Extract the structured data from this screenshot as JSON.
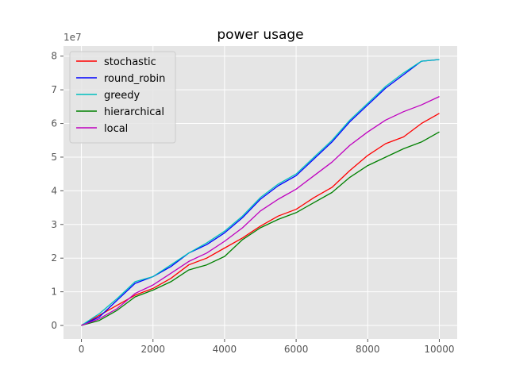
{
  "chart_data": {
    "type": "line",
    "title": "power usage",
    "xlabel": "",
    "ylabel": "",
    "y_offset_label": "1e7",
    "xlim": [
      -500,
      10500
    ],
    "ylim": [
      -0.4,
      8.3
    ],
    "xticks": [
      0,
      2000,
      4000,
      6000,
      8000,
      10000
    ],
    "xtick_labels": [
      "0",
      "2000",
      "4000",
      "6000",
      "8000",
      "10000"
    ],
    "yticks": [
      0,
      1,
      2,
      3,
      4,
      5,
      6,
      7,
      8
    ],
    "ytick_labels": [
      "0",
      "1",
      "2",
      "3",
      "4",
      "5",
      "6",
      "7",
      "8"
    ],
    "grid": true,
    "legend_position": "top-left",
    "x": [
      0,
      500,
      1000,
      1500,
      2000,
      2500,
      3000,
      3500,
      4000,
      4500,
      5000,
      5500,
      6000,
      6500,
      7000,
      7500,
      8000,
      8500,
      9000,
      9500,
      10000
    ],
    "series": [
      {
        "name": "stochastic",
        "color": "#ff0000",
        "values": [
          0,
          0.3,
          0.6,
          0.9,
          1.1,
          1.4,
          1.8,
          2.0,
          2.3,
          2.6,
          2.95,
          3.25,
          3.45,
          3.8,
          4.1,
          4.6,
          5.05,
          5.4,
          5.6,
          6.0,
          6.3
        ]
      },
      {
        "name": "round_robin",
        "color": "#0000ff",
        "values": [
          0,
          0.25,
          0.75,
          1.25,
          1.45,
          1.75,
          2.15,
          2.4,
          2.75,
          3.2,
          3.75,
          4.15,
          4.45,
          4.95,
          5.45,
          6.05,
          6.55,
          7.05,
          7.45,
          7.85,
          7.9
        ]
      },
      {
        "name": "greedy",
        "color": "#00bfbf",
        "values": [
          0,
          0.35,
          0.8,
          1.3,
          1.45,
          1.8,
          2.15,
          2.45,
          2.8,
          3.25,
          3.8,
          4.2,
          4.5,
          5.0,
          5.5,
          6.1,
          6.6,
          7.1,
          7.5,
          7.85,
          7.9
        ]
      },
      {
        "name": "hierarchical",
        "color": "#008000",
        "values": [
          0,
          0.15,
          0.45,
          0.85,
          1.05,
          1.3,
          1.65,
          1.8,
          2.05,
          2.55,
          2.9,
          3.15,
          3.35,
          3.65,
          3.95,
          4.4,
          4.75,
          5.0,
          5.25,
          5.45,
          5.75
        ]
      },
      {
        "name": "local",
        "color": "#bf00bf",
        "values": [
          0,
          0.2,
          0.5,
          0.95,
          1.2,
          1.55,
          1.9,
          2.15,
          2.5,
          2.9,
          3.4,
          3.75,
          4.05,
          4.45,
          4.85,
          5.35,
          5.75,
          6.1,
          6.35,
          6.55,
          6.8
        ]
      }
    ]
  }
}
